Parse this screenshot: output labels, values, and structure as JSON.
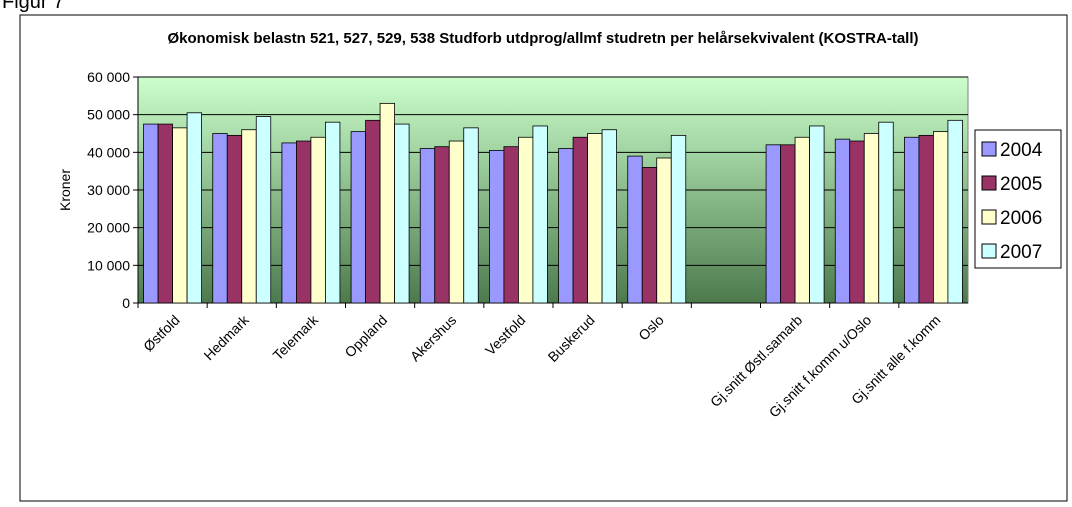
{
  "caption": "Figur 7",
  "chart_data": {
    "type": "bar",
    "title": "Økonomisk belastn 521, 527, 529, 538 Studforb utdprog/allmf studretn per helårsekvivalent (KOSTRA-tall)",
    "ylabel": "Kroner",
    "categories": [
      "Østfold",
      "Hedmark",
      "Telemark",
      "Oppland",
      "Akershus",
      "Vestfold",
      "Buskerud",
      "Oslo",
      null,
      "Gj.snitt Østl.samarb",
      "Gj.snitt f.komm u/Oslo",
      "Gj.snitt alle f.komm"
    ],
    "series": [
      {
        "name": "2004",
        "color": "#9999ff",
        "values": [
          47500,
          45000,
          42500,
          45500,
          41000,
          40500,
          41000,
          39000,
          null,
          42000,
          43500,
          44000
        ]
      },
      {
        "name": "2005",
        "color": "#993366",
        "values": [
          47500,
          44500,
          43000,
          48500,
          41500,
          41500,
          44000,
          36000,
          null,
          42000,
          43000,
          44500
        ]
      },
      {
        "name": "2006",
        "color": "#ffffcc",
        "values": [
          46500,
          46000,
          44000,
          53000,
          43000,
          44000,
          45000,
          38500,
          null,
          44000,
          45000,
          45500
        ]
      },
      {
        "name": "2007",
        "color": "#ccffff",
        "values": [
          50500,
          49500,
          48000,
          47500,
          46500,
          47000,
          46000,
          44500,
          null,
          47000,
          48000,
          48500
        ]
      }
    ],
    "ylim": [
      0,
      60000
    ],
    "yticks": [
      0,
      {
        "value": 10000,
        "label": "10 000"
      },
      {
        "value": 20000,
        "label": "20 000"
      },
      {
        "value": 30000,
        "label": "30 000"
      },
      {
        "value": 40000,
        "label": "40 000"
      },
      {
        "value": 50000,
        "label": "50 000"
      },
      {
        "value": 60000,
        "label": "60 000"
      }
    ],
    "grid": true,
    "legend": "right"
  }
}
